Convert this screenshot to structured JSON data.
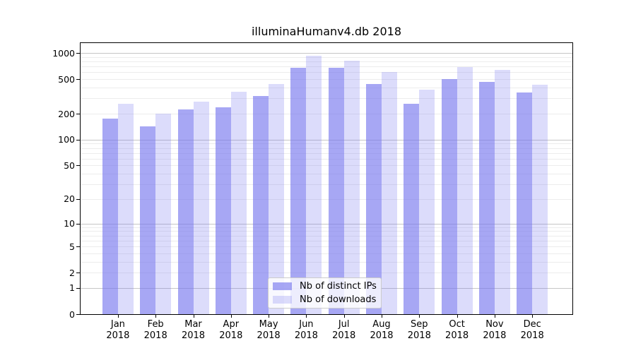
{
  "figure": {
    "title": "illuminaHumanv4.db 2018"
  },
  "colors": {
    "bar_base": "#7878ee",
    "ips_alpha": 0.65,
    "downloads_alpha": 0.26,
    "grid_major": "#c6c6c6",
    "grid_minor": "#ececec",
    "spine": "#000000",
    "legend_border": "#cccccc"
  },
  "chart_data": {
    "type": "bar",
    "title": "illuminaHumanv4.db 2018",
    "year_label": "2018",
    "categories": [
      "Jan",
      "Feb",
      "Mar",
      "Apr",
      "May",
      "Jun",
      "Jul",
      "Aug",
      "Sep",
      "Oct",
      "Nov",
      "Dec"
    ],
    "series": [
      {
        "name": "Nb of distinct IPs",
        "values": [
          175,
          142,
          222,
          237,
          322,
          675,
          670,
          440,
          260,
          500,
          462,
          348
        ]
      },
      {
        "name": "Nb of downloads",
        "values": [
          260,
          200,
          277,
          355,
          440,
          930,
          810,
          605,
          380,
          695,
          640,
          435
        ]
      }
    ],
    "yscale": "log1p",
    "yticks": [
      0,
      1,
      2,
      5,
      10,
      20,
      50,
      100,
      200,
      500,
      1000
    ],
    "ylim": [
      0,
      1200
    ],
    "grid": "on",
    "grid_major_at": [
      1,
      10,
      100,
      1000
    ],
    "grid_minor_multiples": [
      2,
      3,
      4,
      5,
      6,
      7,
      8,
      9
    ],
    "legend_position": "lower center",
    "xlabel": "",
    "ylabel": ""
  }
}
